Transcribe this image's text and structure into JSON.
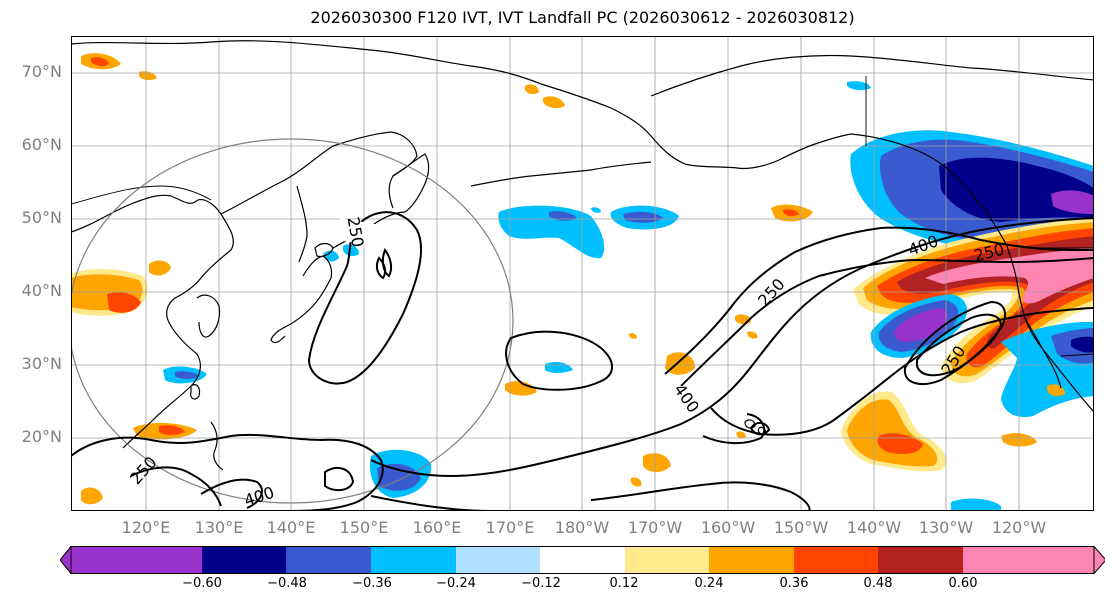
{
  "title": "2026030300 F120 IVT, IVT Landfall PC (2026030612 - 2026030812)",
  "lat_labels": [
    "70°N",
    "60°N",
    "50°N",
    "40°N",
    "30°N",
    "20°N"
  ],
  "lon_labels": [
    "120°E",
    "130°E",
    "140°E",
    "150°E",
    "160°E",
    "170°E",
    "180°W",
    "170°W",
    "160°W",
    "150°W",
    "140°W",
    "130°W",
    "120°W"
  ],
  "contour_labels": [
    "250",
    "250",
    "250",
    "250",
    "250",
    "400",
    "400",
    "400"
  ],
  "colorbar": {
    "colors": [
      "#9932cc",
      "#00008b",
      "#3a5bcf",
      "#00bfff",
      "#b0e0ff",
      "#ffffff",
      "#ffe98a",
      "#ffa500",
      "#ff4500",
      "#b22222",
      "#ff85b3"
    ],
    "tick_labels": [
      "−0.60",
      "−0.48",
      "−0.36",
      "−0.24",
      "−0.12",
      "0.12",
      "0.24",
      "0.36",
      "0.48",
      "0.60"
    ]
  }
}
